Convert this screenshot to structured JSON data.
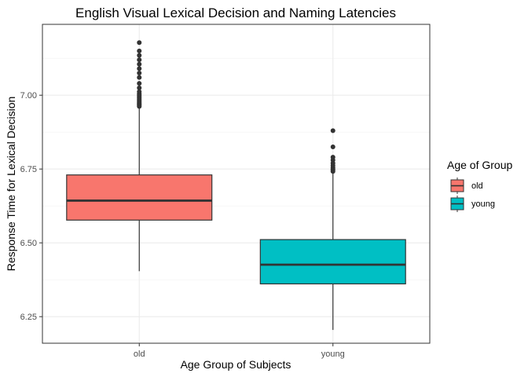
{
  "chart_data": {
    "type": "box",
    "title": "English Visual Lexical Decision and Naming Latencies",
    "xlabel": "Age Group of Subjects",
    "ylabel": "Response Time for Lexical Decision",
    "categories": [
      "old",
      "young"
    ],
    "ylim": [
      6.16,
      7.24
    ],
    "yticks": [
      6.25,
      6.5,
      6.75,
      7.0
    ],
    "ytick_labels": [
      "6.25",
      "6.50",
      "6.75",
      "7.00"
    ],
    "boxes": [
      {
        "category": "old",
        "color": "#F8766D",
        "whisker_low": 6.404,
        "q1": 6.577,
        "median": 6.643,
        "q3": 6.73,
        "whisker_high": 6.958,
        "outliers": [
          6.962,
          6.966,
          6.969,
          6.972,
          6.976,
          6.98,
          6.985,
          6.99,
          6.995,
          7.0,
          7.005,
          7.012,
          7.025,
          7.04,
          7.06,
          7.075,
          7.09,
          7.105,
          7.12,
          7.135,
          7.15,
          7.178
        ]
      },
      {
        "category": "young",
        "color": "#00BFC4",
        "whisker_low": 6.205,
        "q1": 6.361,
        "median": 6.426,
        "q3": 6.511,
        "whisker_high": 6.737,
        "outliers": [
          6.742,
          6.746,
          6.75,
          6.755,
          6.762,
          6.77,
          6.78,
          6.79,
          6.825,
          6.88
        ]
      }
    ],
    "legend": {
      "title": "Age of Group",
      "position": "right",
      "entries": [
        {
          "label": "old",
          "color": "#F8766D"
        },
        {
          "label": "young",
          "color": "#00BFC4"
        }
      ]
    },
    "grid": true
  }
}
